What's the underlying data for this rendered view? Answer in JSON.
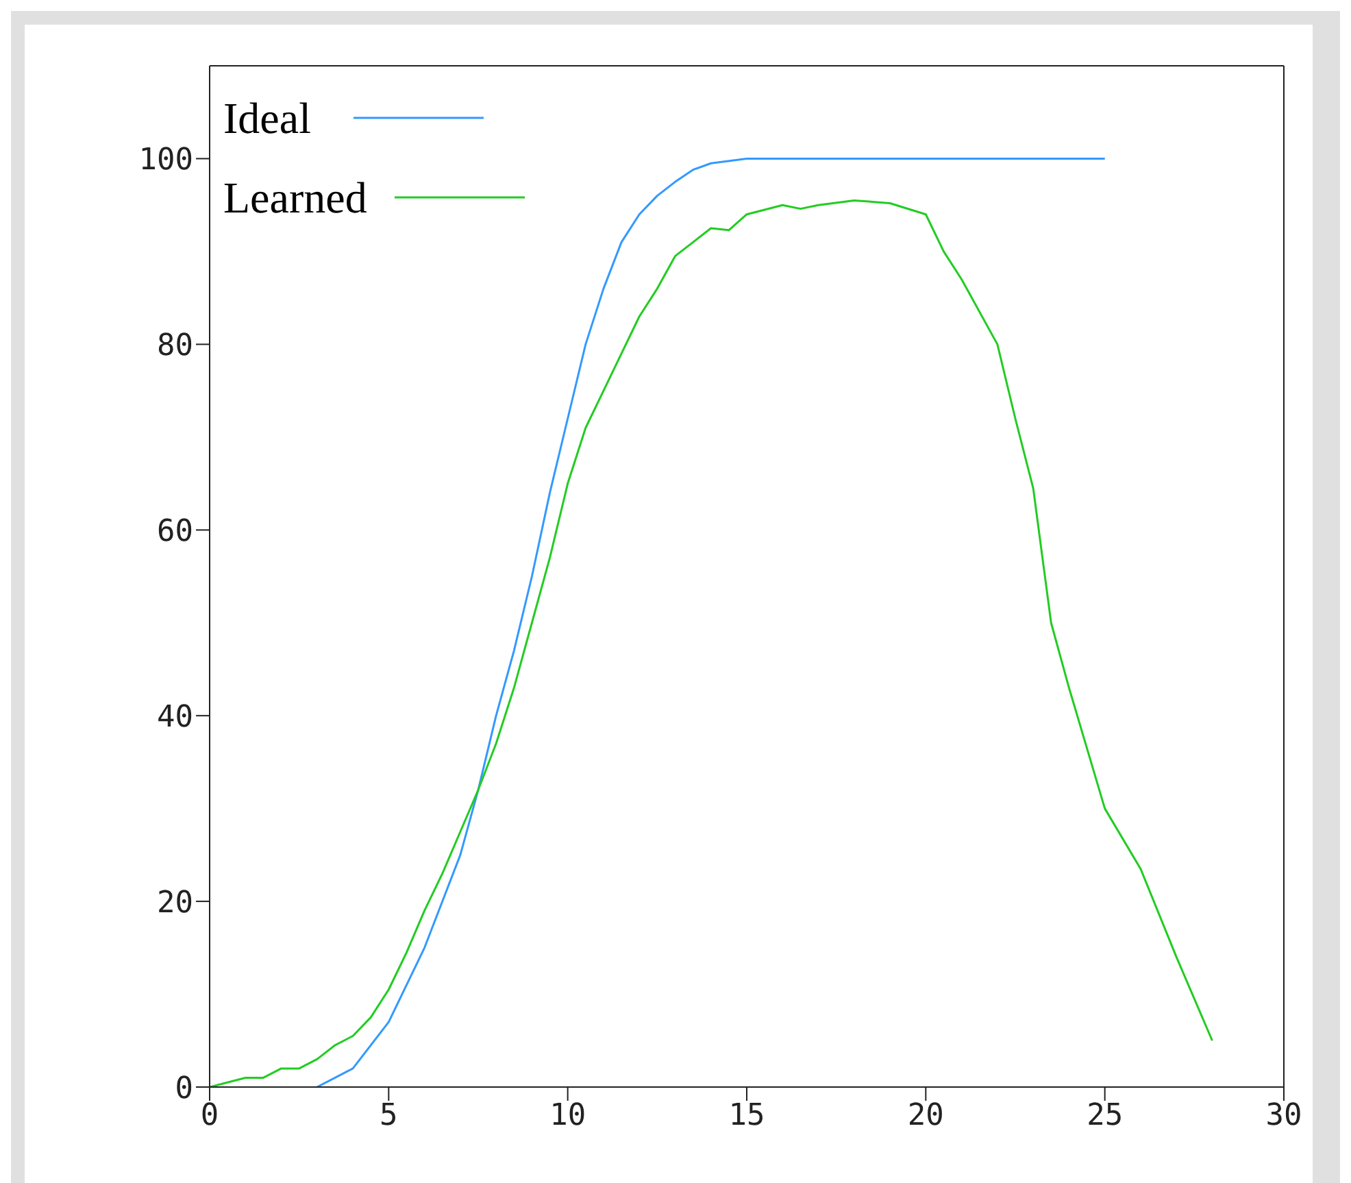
{
  "chart_data": {
    "type": "line",
    "xlim": [
      0,
      30
    ],
    "xticks": [
      0,
      5,
      10,
      15,
      20,
      25,
      30
    ],
    "ylim": [
      0,
      110
    ],
    "yticks": [
      0,
      20,
      40,
      60,
      80,
      100
    ],
    "legend": "top left",
    "marker": "none",
    "line_style": "solid",
    "series": [
      {
        "name": "Ideal",
        "color": "#3399ff",
        "x": [
          3,
          4,
          5,
          6,
          7,
          7.5,
          8,
          8.5,
          9,
          9.5,
          10,
          10.5,
          11,
          11.5,
          12,
          12.5,
          13,
          13.5,
          14,
          15,
          25
        ],
        "values": [
          0,
          2,
          7,
          15,
          25,
          32,
          40,
          47,
          55,
          64,
          72,
          80,
          86,
          91,
          94,
          96,
          97.5,
          98.8,
          99.5,
          100,
          100
        ]
      },
      {
        "name": "Learned",
        "color": "#22cc22",
        "x": [
          0,
          0.5,
          1,
          1.5,
          2,
          2.5,
          3,
          3.5,
          4,
          4.5,
          5,
          5.5,
          6,
          6.5,
          7,
          7.5,
          8,
          8.5,
          9,
          9.5,
          10,
          10.5,
          11,
          11.5,
          12,
          12.5,
          13,
          13.5,
          14,
          14.5,
          15,
          16,
          16.5,
          17,
          18,
          19,
          20,
          20.5,
          21,
          22,
          22.5,
          23,
          23.5,
          24,
          24.5,
          25,
          26,
          27,
          28
        ],
        "values": [
          0,
          0.5,
          1,
          1,
          2,
          2,
          3,
          4.5,
          5.5,
          7.5,
          10.5,
          14.5,
          19,
          23,
          27.5,
          32,
          37,
          43,
          50,
          57,
          65,
          71,
          75,
          79,
          83,
          86,
          89.5,
          91,
          92.5,
          92.3,
          94,
          95,
          94.6,
          95,
          95.5,
          95.2,
          94,
          90,
          87,
          80,
          72,
          64.5,
          50,
          43,
          36.5,
          30,
          23.5,
          14,
          5
        ]
      }
    ]
  }
}
